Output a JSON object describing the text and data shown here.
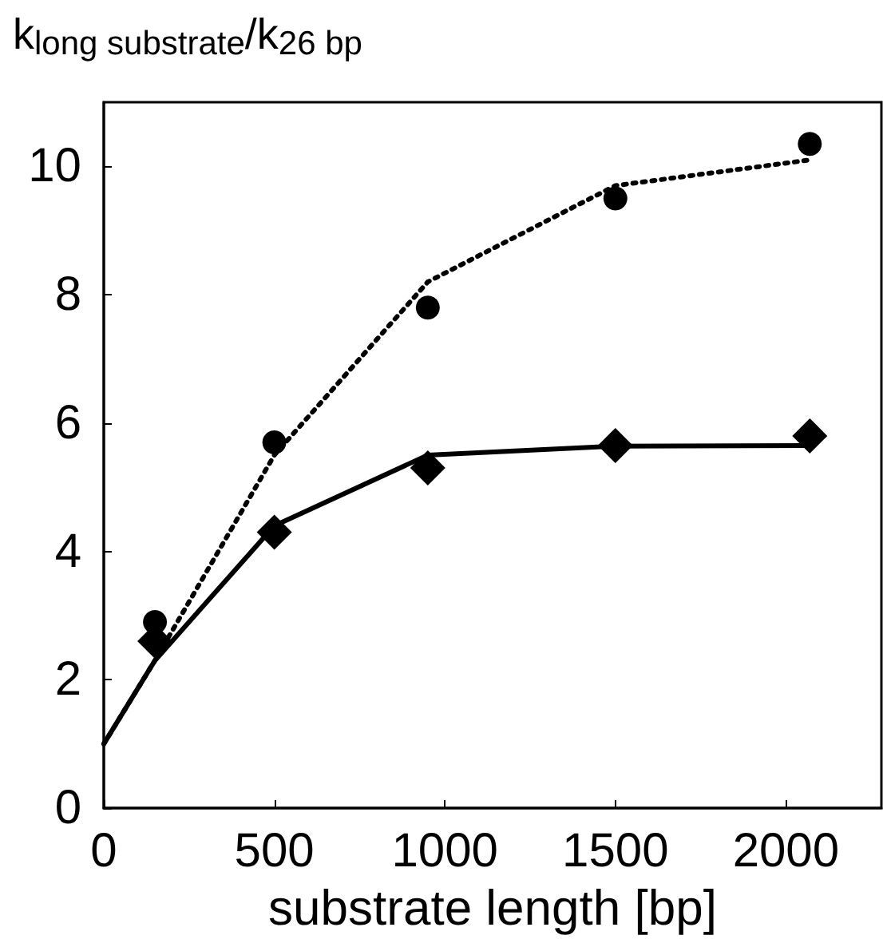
{
  "chart_data": {
    "type": "scatter",
    "ylabel": "k$_{long substrate}$/k$_{26 bp}$",
    "xlabel": "substrate length [bp]",
    "xlim": [
      0,
      2280
    ],
    "xticks": [
      0,
      500,
      1000,
      1500,
      2000
    ],
    "ylim": [
      0,
      11
    ],
    "yticks": [
      0,
      2,
      4,
      6,
      8,
      10
    ],
    "grid": false,
    "series": [
      {
        "marker": "circle",
        "color": "#000000",
        "x": [
          150,
          500,
          950,
          1500,
          2070
        ],
        "values": [
          2.9,
          5.7,
          7.8,
          9.5,
          10.35
        ]
      },
      {
        "marker": "diamond",
        "color": "#000000",
        "x": [
          150,
          500,
          950,
          1500,
          2070
        ],
        "values": [
          2.6,
          4.3,
          5.3,
          5.65,
          5.8
        ]
      },
      {
        "type": "line",
        "marker": "none",
        "line_style": "dotted",
        "color": "#000000",
        "x": [
          0,
          150,
          500,
          950,
          1500,
          2070
        ],
        "values": [
          1,
          2.3,
          5.5,
          8.2,
          9.7,
          10.1
        ]
      },
      {
        "type": "line",
        "marker": "none",
        "line_style": "solid",
        "color": "#000000",
        "x": [
          0,
          150,
          500,
          950,
          1500,
          2070
        ],
        "values": [
          1,
          2.3,
          4.4,
          5.5,
          5.64,
          5.65
        ]
      }
    ]
  }
}
